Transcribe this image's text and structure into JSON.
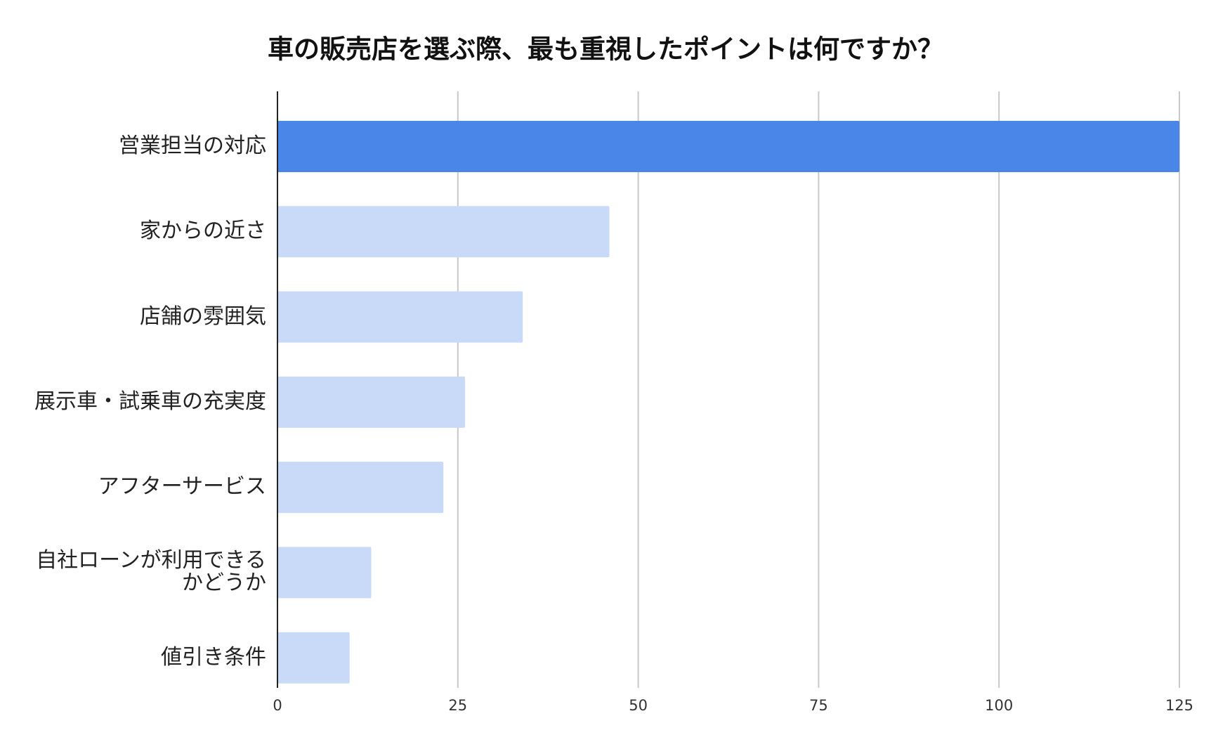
{
  "chart_data": {
    "type": "barh",
    "title": "車の販売店を選ぶ際、最も重視したポイントは何ですか？",
    "categories": [
      "営業担当の対応",
      "家からの近さ",
      "店舗の雰囲気",
      "展示車・試乗車の充実度",
      "アフターサービス",
      "自社ローンが利用できるかどうか",
      "値引き条件"
    ],
    "values": [
      125,
      46,
      34,
      26,
      23,
      13,
      10
    ],
    "colors": [
      "#4a86e8",
      "#c9daf8",
      "#c9daf8",
      "#c9daf8",
      "#c9daf8",
      "#c9daf8",
      "#c9daf8"
    ],
    "xlim": [
      0,
      125
    ],
    "xticks": [
      0,
      25,
      50,
      75,
      100,
      125
    ],
    "grid": true
  }
}
